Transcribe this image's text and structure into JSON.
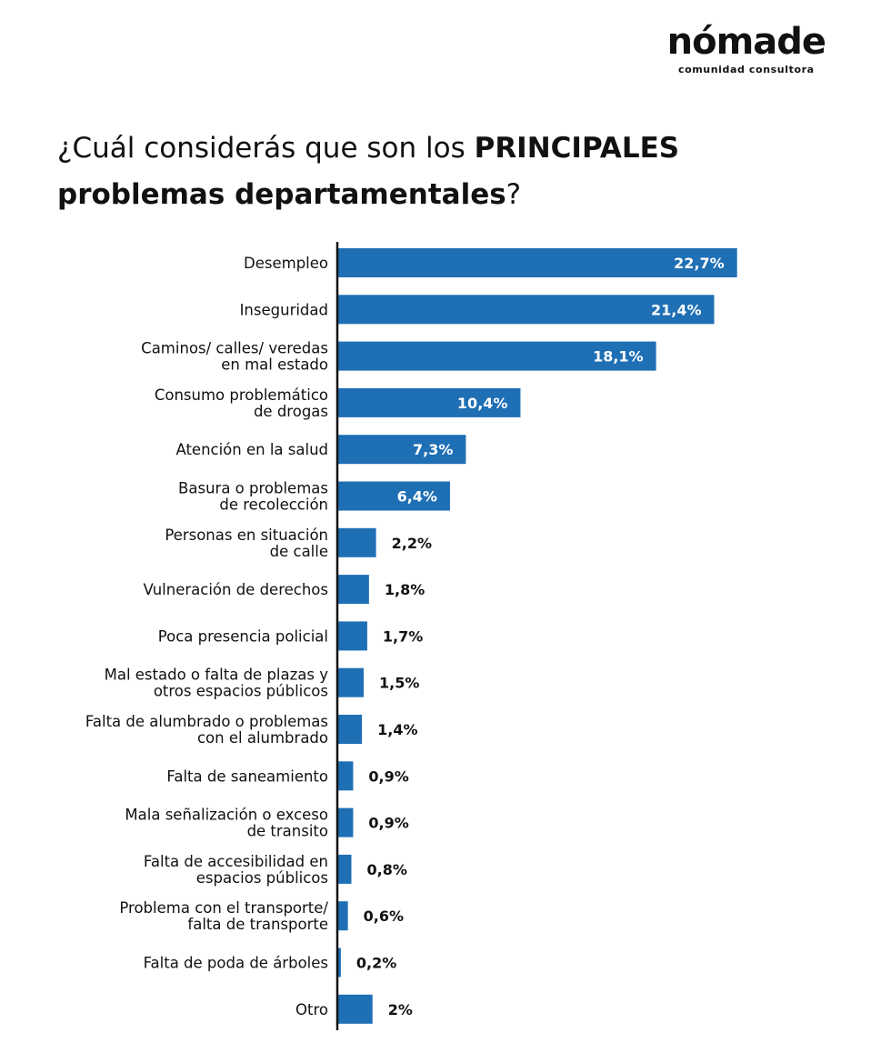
{
  "brand": {
    "name": "nómade",
    "tagline": "comunidad consultora"
  },
  "title": {
    "prefix": "¿Cuál considerás que son los ",
    "bold": "PRINCIPALES problemas departamentales",
    "suffix": "?"
  },
  "colors": {
    "bar": "#1f6fb5",
    "axis": "#111111",
    "inside_label": "#ffffff",
    "outside_label": "#111111"
  },
  "chart_data": {
    "type": "bar",
    "orientation": "horizontal",
    "title": "¿Cuál considerás que son los PRINCIPALES problemas departamentales?",
    "unit": "%",
    "xlim": [
      0,
      25
    ],
    "categories": [
      [
        "Desempleo"
      ],
      [
        "Inseguridad"
      ],
      [
        "Caminos/ calles/ veredas",
        "en mal estado"
      ],
      [
        "Consumo problemático",
        "de drogas"
      ],
      [
        "Atención en la salud"
      ],
      [
        "Basura o problemas",
        "de recolección"
      ],
      [
        "Personas en situación",
        "de calle"
      ],
      [
        "Vulneración de derechos"
      ],
      [
        "Poca presencia policial"
      ],
      [
        "Mal estado o falta de plazas y",
        "otros espacios públicos"
      ],
      [
        "Falta de alumbrado o problemas",
        "con el alumbrado"
      ],
      [
        "Falta de saneamiento"
      ],
      [
        "Mala señalización o exceso",
        "de transito"
      ],
      [
        "Falta de accesibilidad en",
        "espacios públicos"
      ],
      [
        "Problema con el transporte/",
        "falta de transporte"
      ],
      [
        "Falta de poda de árboles"
      ],
      [
        "Otro"
      ]
    ],
    "values": [
      22.7,
      21.4,
      18.1,
      10.4,
      7.3,
      6.4,
      2.2,
      1.8,
      1.7,
      1.5,
      1.4,
      0.9,
      0.9,
      0.8,
      0.6,
      0.2,
      2
    ],
    "value_labels": [
      "22,7%",
      "21,4%",
      "18,1%",
      "10,4%",
      "7,3%",
      "6,4%",
      "2,2%",
      "1,8%",
      "1,7%",
      "1,5%",
      "1,4%",
      "0,9%",
      "0,9%",
      "0,8%",
      "0,6%",
      "0,2%",
      "2%"
    ]
  }
}
